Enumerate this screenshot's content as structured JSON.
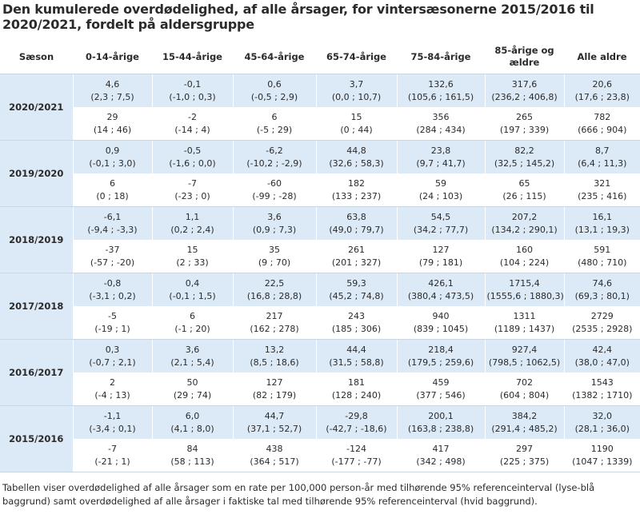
{
  "title": "Den kumulerede overdødelighed, af alle årsager, for vintersæsonerne 2015/2016 til 2020/2021, fordelt på aldersgruppe",
  "headers": [
    "Sæson",
    "0-14-årige",
    "15-44-årige",
    "45-64-årige",
    "65-74-årige",
    "75-84-årige",
    "85-årige og ældre",
    "Alle aldre"
  ],
  "seasons": [
    {
      "label": "2020/2021",
      "rate": [
        [
          "4,6",
          "(2,3 ; 7,5)"
        ],
        [
          "-0,1",
          "(-1,0 ; 0,3)"
        ],
        [
          "0,6",
          "(-0,5 ; 2,9)"
        ],
        [
          "3,7",
          "(0,0 ; 10,7)"
        ],
        [
          "132,6",
          "(105,6 ; 161,5)"
        ],
        [
          "317,6",
          "(236,2 ; 406,8)"
        ],
        [
          "20,6",
          "(17,6 ; 23,8)"
        ]
      ],
      "count": [
        [
          "29",
          "(14 ; 46)"
        ],
        [
          "-2",
          "(-14 ; 4)"
        ],
        [
          "6",
          "(-5 ; 29)"
        ],
        [
          "15",
          "(0 ; 44)"
        ],
        [
          "356",
          "(284 ; 434)"
        ],
        [
          "265",
          "(197 ; 339)"
        ],
        [
          "782",
          "(666 ; 904)"
        ]
      ]
    },
    {
      "label": "2019/2020",
      "rate": [
        [
          "0,9",
          "(-0,1 ; 3,0)"
        ],
        [
          "-0,5",
          "(-1,6 ; 0,0)"
        ],
        [
          "-6,2",
          "(-10,2 ; -2,9)"
        ],
        [
          "44,8",
          "(32,6 ; 58,3)"
        ],
        [
          "23,8",
          "(9,7 ; 41,7)"
        ],
        [
          "82,2",
          "(32,5 ; 145,2)"
        ],
        [
          "8,7",
          "(6,4 ; 11,3)"
        ]
      ],
      "count": [
        [
          "6",
          "(0 ; 18)"
        ],
        [
          "-7",
          "(-23 ; 0)"
        ],
        [
          "-60",
          "(-99 ; -28)"
        ],
        [
          "182",
          "(133 ; 237)"
        ],
        [
          "59",
          "(24 ; 103)"
        ],
        [
          "65",
          "(26 ; 115)"
        ],
        [
          "321",
          "(235 ; 416)"
        ]
      ]
    },
    {
      "label": "2018/2019",
      "rate": [
        [
          "-6,1",
          "(-9,4 ; -3,3)"
        ],
        [
          "1,1",
          "(0,2 ; 2,4)"
        ],
        [
          "3,6",
          "(0,9 ; 7,3)"
        ],
        [
          "63,8",
          "(49,0 ; 79,7)"
        ],
        [
          "54,5",
          "(34,2 ; 77,7)"
        ],
        [
          "207,2",
          "(134,2 ; 290,1)"
        ],
        [
          "16,1",
          "(13,1 ; 19,3)"
        ]
      ],
      "count": [
        [
          "-37",
          "(-57 ; -20)"
        ],
        [
          "15",
          "(2 ; 33)"
        ],
        [
          "35",
          "(9 ; 70)"
        ],
        [
          "261",
          "(201 ; 327)"
        ],
        [
          "127",
          "(79 ; 181)"
        ],
        [
          "160",
          "(104 ; 224)"
        ],
        [
          "591",
          "(480 ; 710)"
        ]
      ]
    },
    {
      "label": "2017/2018",
      "rate": [
        [
          "-0,8",
          "(-3,1 ; 0,2)"
        ],
        [
          "0,4",
          "(-0,1 ; 1,5)"
        ],
        [
          "22,5",
          "(16,8 ; 28,8)"
        ],
        [
          "59,3",
          "(45,2 ; 74,8)"
        ],
        [
          "426,1",
          "(380,4 ; 473,5)"
        ],
        [
          "1715,4",
          "(1555,6 ; 1880,3)"
        ],
        [
          "74,6",
          "(69,3 ; 80,1)"
        ]
      ],
      "count": [
        [
          "-5",
          "(-19 ; 1)"
        ],
        [
          "6",
          "(-1 ; 20)"
        ],
        [
          "217",
          "(162 ; 278)"
        ],
        [
          "243",
          "(185 ; 306)"
        ],
        [
          "940",
          "(839 ; 1045)"
        ],
        [
          "1311",
          "(1189 ; 1437)"
        ],
        [
          "2729",
          "(2535 ; 2928)"
        ]
      ]
    },
    {
      "label": "2016/2017",
      "rate": [
        [
          "0,3",
          "(-0,7 ; 2,1)"
        ],
        [
          "3,6",
          "(2,1 ; 5,4)"
        ],
        [
          "13,2",
          "(8,5 ; 18,6)"
        ],
        [
          "44,4",
          "(31,5 ; 58,8)"
        ],
        [
          "218,4",
          "(179,5 ; 259,6)"
        ],
        [
          "927,4",
          "(798,5 ; 1062,5)"
        ],
        [
          "42,4",
          "(38,0 ; 47,0)"
        ]
      ],
      "count": [
        [
          "2",
          "(-4 ; 13)"
        ],
        [
          "50",
          "(29 ; 74)"
        ],
        [
          "127",
          "(82 ; 179)"
        ],
        [
          "181",
          "(128 ; 240)"
        ],
        [
          "459",
          "(377 ; 546)"
        ],
        [
          "702",
          "(604 ; 804)"
        ],
        [
          "1543",
          "(1382 ; 1710)"
        ]
      ]
    },
    {
      "label": "2015/2016",
      "rate": [
        [
          "-1,1",
          "(-3,4 ; 0,1)"
        ],
        [
          "6,0",
          "(4,1 ; 8,0)"
        ],
        [
          "44,7",
          "(37,1 ; 52,7)"
        ],
        [
          "-29,8",
          "(-42,7 ; -18,6)"
        ],
        [
          "200,1",
          "(163,8 ; 238,8)"
        ],
        [
          "384,2",
          "(291,4 ; 485,2)"
        ],
        [
          "32,0",
          "(28,1 ; 36,0)"
        ]
      ],
      "count": [
        [
          "-7",
          "(-21 ; 1)"
        ],
        [
          "84",
          "(58 ; 113)"
        ],
        [
          "438",
          "(364 ; 517)"
        ],
        [
          "-124",
          "(-177 ; -77)"
        ],
        [
          "417",
          "(342 ; 498)"
        ],
        [
          "297",
          "(225 ; 375)"
        ],
        [
          "1190",
          "(1047 ; 1339)"
        ]
      ]
    }
  ],
  "footnote": "Tabellen viser overdødelighed af alle årsager som en rate per 100,000 person-år med tilhørende 95% referenceinterval (lyse-blå baggrund) samt overdødelighed af alle årsager i faktiske tal med tilhørende 95% referenceinterval (hvid baggrund).",
  "colors": {
    "rate_background": "#dce9f6",
    "count_background": "#ffffff"
  }
}
